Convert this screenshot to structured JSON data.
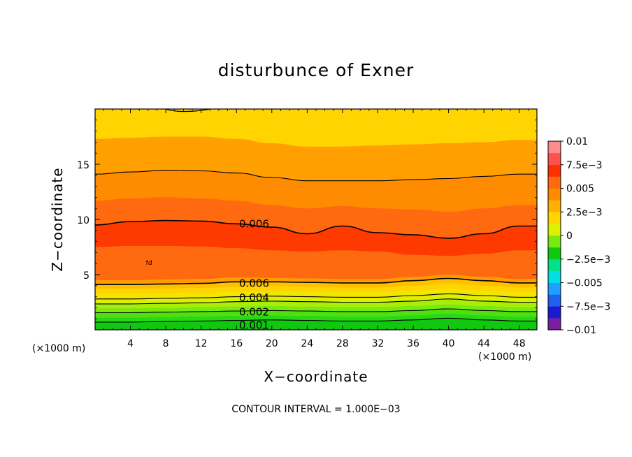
{
  "chart_data": {
    "type": "contour",
    "title": "disturbunce of Exner",
    "xlabel": "X−coordinate",
    "ylabel": "Z−coordinate",
    "x_unit_note_left": "(×1000 m)",
    "x_unit_note_right": "(×1000 m)",
    "xlim": [
      0,
      50
    ],
    "ylim": [
      0,
      20
    ],
    "x_ticks": [
      4,
      8,
      12,
      16,
      20,
      24,
      28,
      32,
      36,
      40,
      44,
      48
    ],
    "x_tick_labels": [
      "4",
      "8",
      "12",
      "16",
      "20",
      "24",
      "28",
      "32",
      "36",
      "40",
      "44",
      "48"
    ],
    "y_ticks": [
      5,
      10,
      15
    ],
    "y_tick_labels": [
      "5",
      "10",
      "15"
    ],
    "contour_interval_text": "CONTOUR INTERVAL = 1.000E−03",
    "contour_labels": [
      {
        "text": "0.006",
        "x": 18,
        "z": 9.6
      },
      {
        "text": "0.006",
        "x": 18,
        "z": 4.2
      },
      {
        "text": "0.004",
        "x": 18,
        "z": 2.9
      },
      {
        "text": "0.002",
        "x": 18,
        "z": 1.6
      },
      {
        "text": "0.001",
        "x": 18,
        "z": 0.4
      }
    ],
    "small_label": {
      "text": "fd",
      "x": 6.1,
      "z": 5.9
    },
    "colorbar": {
      "colors": [
        "#7a1fa2",
        "#1a1ad6",
        "#2060f0",
        "#1ea0ff",
        "#00e0e0",
        "#00e08a",
        "#10c810",
        "#78ea10",
        "#dcf000",
        "#ffd400",
        "#ffb000",
        "#ff8c00",
        "#ff6a10",
        "#ff3000",
        "#ff5050",
        "#ff8c8c"
      ],
      "labels": [
        "0.01",
        "7.5e−3",
        "0.005",
        "2.5e−3",
        "0",
        "−2.5e−3",
        "−0.005",
        "−7.5e−3",
        "−0.01"
      ]
    },
    "bands": [
      {
        "level_from": 0.0,
        "color": "#10c810",
        "boundary_z": [
          0.25,
          0.25,
          0.3,
          0.3,
          0.35,
          0.4,
          0.35,
          0.3,
          0.3,
          0.4,
          0.55,
          0.4,
          0.3
        ]
      },
      {
        "level_from": 0.001,
        "color": "#28d814",
        "boundary_z": [
          0.7,
          0.7,
          0.75,
          0.8,
          0.85,
          0.9,
          0.85,
          0.8,
          0.8,
          0.9,
          1.05,
          0.9,
          0.8
        ]
      },
      {
        "level_from": 0.0015,
        "color": "#50e012",
        "boundary_z": [
          1.1,
          1.1,
          1.15,
          1.2,
          1.25,
          1.3,
          1.25,
          1.2,
          1.2,
          1.3,
          1.45,
          1.3,
          1.2
        ]
      },
      {
        "level_from": 0.002,
        "color": "#78ea10",
        "boundary_z": [
          1.55,
          1.55,
          1.6,
          1.65,
          1.7,
          1.75,
          1.7,
          1.65,
          1.65,
          1.75,
          1.9,
          1.75,
          1.65
        ]
      },
      {
        "level_from": 0.0025,
        "color": "#a8ee08",
        "boundary_z": [
          1.95,
          1.95,
          2.0,
          2.05,
          2.1,
          2.15,
          2.1,
          2.05,
          2.05,
          2.15,
          2.3,
          2.15,
          2.05
        ]
      },
      {
        "level_from": 0.003,
        "color": "#dcf000",
        "boundary_z": [
          2.35,
          2.35,
          2.4,
          2.45,
          2.55,
          2.6,
          2.55,
          2.5,
          2.5,
          2.6,
          2.8,
          2.6,
          2.5
        ]
      },
      {
        "level_from": 0.0035,
        "color": "#f2e600",
        "boundary_z": [
          2.8,
          2.8,
          2.85,
          2.9,
          3.0,
          3.05,
          3.0,
          2.95,
          2.95,
          3.1,
          3.25,
          3.1,
          2.95
        ]
      },
      {
        "level_from": 0.004,
        "color": "#ffd400",
        "boundary_z": [
          3.25,
          3.25,
          3.3,
          3.35,
          3.45,
          3.5,
          3.45,
          3.4,
          3.4,
          3.55,
          3.7,
          3.55,
          3.4
        ]
      },
      {
        "level_from": 0.0045,
        "color": "#ffc000",
        "boundary_z": [
          3.7,
          3.7,
          3.75,
          3.8,
          3.9,
          3.95,
          3.9,
          3.85,
          3.85,
          4.0,
          4.2,
          4.0,
          3.85
        ]
      },
      {
        "level_from": 0.005,
        "color": "#ff9c00",
        "boundary_z": [
          4.1,
          4.1,
          4.15,
          4.2,
          4.35,
          4.35,
          4.3,
          4.25,
          4.25,
          4.45,
          4.65,
          4.45,
          4.25
        ]
      },
      {
        "level_from": 0.006,
        "color": "#ff6a10",
        "boundary_z": [
          4.5,
          4.5,
          4.55,
          4.6,
          4.75,
          4.7,
          4.65,
          4.6,
          4.6,
          4.8,
          5.0,
          4.8,
          4.6
        ]
      },
      {
        "level_from": 0.007,
        "color": "#ff3a00",
        "boundary_z": [
          7.5,
          7.6,
          7.6,
          7.55,
          7.4,
          7.2,
          7.1,
          7.2,
          7.1,
          6.8,
          6.7,
          6.9,
          7.2
        ]
      },
      {
        "level_from": 0.006,
        "color": "#ff6a10",
        "boundary_z": [
          9.5,
          9.8,
          9.9,
          9.85,
          9.6,
          9.3,
          8.7,
          9.4,
          8.8,
          8.6,
          8.3,
          8.7,
          9.4
        ]
      },
      {
        "level_from": 0.0055,
        "color": "#ff8c00",
        "boundary_z": [
          11.7,
          11.9,
          12.0,
          11.9,
          11.7,
          11.3,
          11.0,
          11.2,
          11.0,
          10.9,
          10.7,
          11.0,
          11.3
        ]
      },
      {
        "level_from": 0.005,
        "color": "#ffa000",
        "boundary_z": [
          14.1,
          14.3,
          14.45,
          14.4,
          14.2,
          13.8,
          13.5,
          13.5,
          13.5,
          13.6,
          13.7,
          13.9,
          14.1
        ]
      },
      {
        "level_from": 0.0045,
        "color": "#ffb400",
        "boundary_z": [
          17.3,
          17.4,
          17.5,
          17.5,
          17.3,
          16.9,
          16.6,
          16.6,
          16.7,
          16.8,
          16.9,
          17.0,
          17.2
        ]
      },
      {
        "level_from": 0.004,
        "color": "#ffd400",
        "boundary_z": [
          20,
          20,
          20,
          20,
          20,
          20,
          20,
          20,
          20,
          20,
          20,
          20,
          20
        ]
      }
    ],
    "contour_lines": [
      {
        "level": 0.006,
        "z": [
          9.5,
          9.8,
          9.9,
          9.85,
          9.6,
          9.3,
          8.7,
          9.4,
          8.8,
          8.6,
          8.3,
          8.7,
          9.4
        ]
      },
      {
        "level": 0.005,
        "z": [
          14.1,
          14.3,
          14.45,
          14.4,
          14.2,
          13.8,
          13.5,
          13.5,
          13.5,
          13.6,
          13.7,
          13.9,
          14.1
        ]
      },
      {
        "level": 0.006,
        "z": [
          4.1,
          4.1,
          4.15,
          4.2,
          4.35,
          4.35,
          4.3,
          4.25,
          4.25,
          4.45,
          4.65,
          4.45,
          4.25
        ]
      },
      {
        "level": 0.004,
        "z": [
          2.8,
          2.8,
          2.85,
          2.9,
          3.0,
          3.05,
          3.0,
          2.95,
          2.95,
          3.1,
          3.25,
          3.1,
          2.95
        ]
      },
      {
        "level": 0.003,
        "z": [
          2.35,
          2.35,
          2.4,
          2.45,
          2.55,
          2.6,
          2.55,
          2.5,
          2.5,
          2.6,
          2.8,
          2.6,
          2.5
        ]
      },
      {
        "level": 0.002,
        "z": [
          1.55,
          1.55,
          1.6,
          1.65,
          1.7,
          1.75,
          1.7,
          1.65,
          1.65,
          1.75,
          1.9,
          1.75,
          1.65
        ]
      },
      {
        "level": 0.001,
        "z": [
          0.7,
          0.7,
          0.75,
          0.8,
          0.85,
          0.9,
          0.85,
          0.8,
          0.8,
          0.9,
          1.05,
          0.9,
          0.8
        ]
      }
    ],
    "sample_x": [
      0,
      4,
      8,
      12,
      16,
      20,
      24,
      28,
      32,
      36,
      40,
      44,
      48
    ]
  }
}
